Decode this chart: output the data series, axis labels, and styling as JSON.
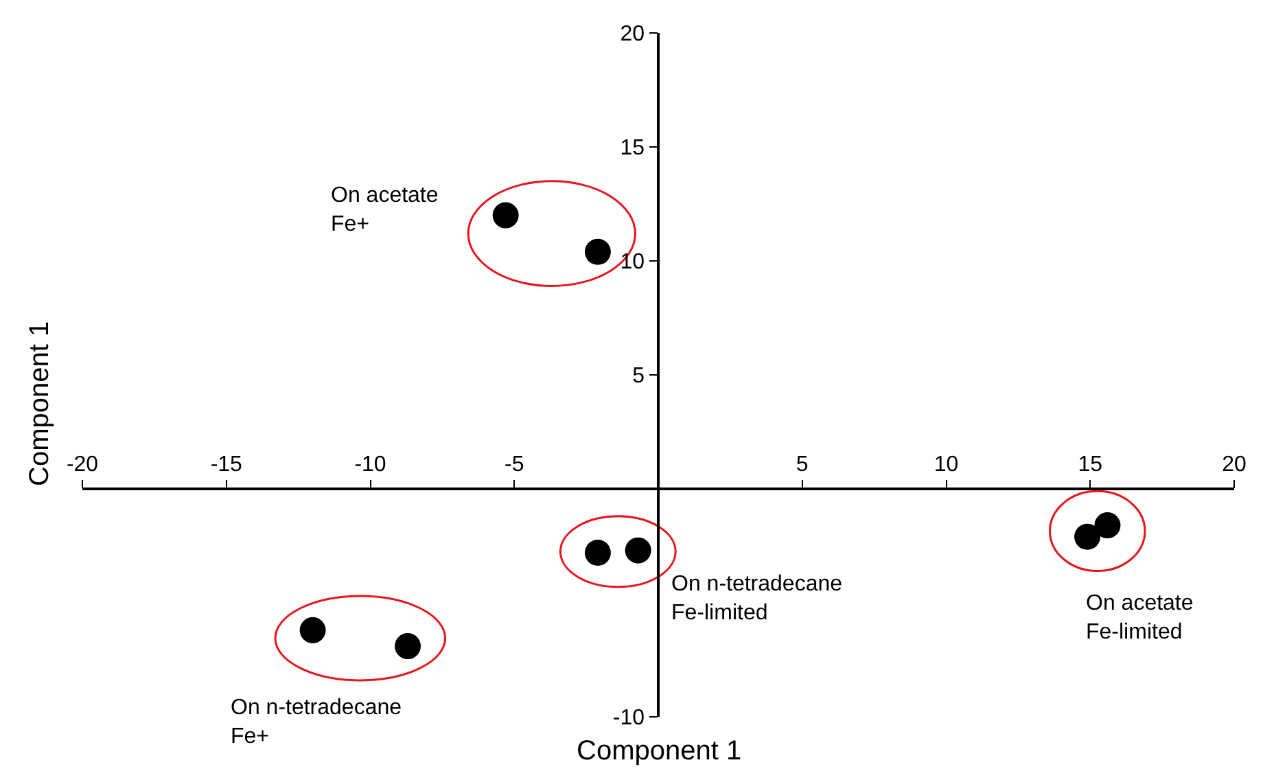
{
  "chart_data": {
    "type": "scatter",
    "xlabel": "Component 1",
    "ylabel": "Component 1",
    "marker": "circle",
    "series": [
      {
        "color": "#000000",
        "x": [
          -5.3,
          -2.1
        ],
        "values": [
          12.0,
          10.4
        ]
      },
      {
        "color": "#000000",
        "x": [
          -2.1,
          -0.7
        ],
        "values": [
          -2.8,
          -2.7
        ]
      },
      {
        "color": "#000000",
        "x": [
          14.9,
          15.6
        ],
        "values": [
          -2.1,
          -1.6
        ]
      },
      {
        "color": "#000000",
        "x": [
          -12.0,
          -8.7
        ],
        "values": [
          -6.2,
          -6.9
        ]
      }
    ],
    "annotations": [
      "On acetate\nFe+",
      "On n-tetradecane\nFe-limited",
      "On acetate\nFe-limited",
      "On n-tetradecane\nFe+"
    ],
    "xlim": [
      -20,
      20
    ],
    "xticks": [
      -20,
      -15,
      -10,
      -5,
      5,
      10,
      15,
      20
    ],
    "ylim": [
      -10,
      20
    ],
    "yticks": [
      -10,
      5,
      10,
      15,
      20
    ],
    "grid": false
  }
}
